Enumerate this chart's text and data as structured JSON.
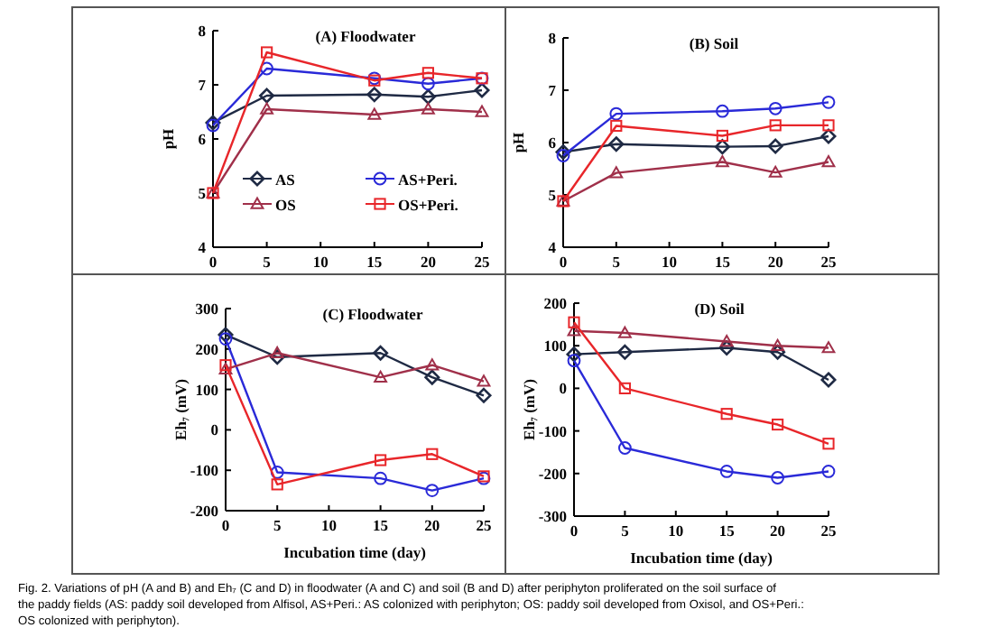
{
  "chart_data": [
    {
      "type": "line",
      "title": "(A)  Floodwater",
      "ylabel": "pH",
      "x": [
        0,
        5,
        15,
        20,
        25
      ],
      "xlim": [
        0,
        25
      ],
      "xticks": [
        0,
        5,
        10,
        15,
        20,
        25
      ],
      "ylim": [
        4,
        8
      ],
      "yticks": [
        4,
        5,
        6,
        7,
        8
      ],
      "legend": "bottom",
      "series": [
        {
          "name": "AS",
          "color": "#1f2a44",
          "marker": "diamond",
          "values": [
            6.3,
            6.8,
            6.82,
            6.78,
            6.9
          ]
        },
        {
          "name": "AS+Peri.",
          "color": "#2a2ad8",
          "marker": "circle",
          "values": [
            6.25,
            7.3,
            7.12,
            7.02,
            7.12
          ]
        },
        {
          "name": "OS",
          "color": "#a0304a",
          "marker": "triangle",
          "values": [
            5.0,
            6.55,
            6.45,
            6.55,
            6.5
          ]
        },
        {
          "name": "OS+Peri.",
          "color": "#e8262a",
          "marker": "square",
          "values": [
            5.0,
            7.6,
            7.08,
            7.22,
            7.12
          ]
        }
      ]
    },
    {
      "type": "line",
      "title": "(B)  Soil",
      "ylabel": "pH",
      "x": [
        0,
        5,
        15,
        20,
        25
      ],
      "xlim": [
        0,
        25
      ],
      "xticks": [
        0,
        5,
        10,
        15,
        20,
        25
      ],
      "ylim": [
        4,
        8
      ],
      "yticks": [
        4,
        5,
        6,
        7,
        8
      ],
      "series": [
        {
          "color": "#1f2a44",
          "marker": "diamond",
          "values": [
            5.82,
            5.97,
            5.92,
            5.93,
            6.12
          ]
        },
        {
          "color": "#2a2ad8",
          "marker": "circle",
          "values": [
            5.75,
            6.55,
            6.6,
            6.65,
            6.77
          ]
        },
        {
          "color": "#a0304a",
          "marker": "triangle",
          "values": [
            4.88,
            5.42,
            5.63,
            5.43,
            5.63
          ]
        },
        {
          "color": "#e8262a",
          "marker": "square",
          "values": [
            4.88,
            6.32,
            6.13,
            6.33,
            6.33
          ]
        }
      ]
    },
    {
      "type": "line",
      "title": "(C)  Floodwater",
      "ylabel": "Eh₇ (mV)",
      "xlabel": "Incubation time (day)",
      "x": [
        0,
        5,
        15,
        20,
        25
      ],
      "xlim": [
        0,
        25
      ],
      "xticks": [
        0,
        5,
        10,
        15,
        20,
        25
      ],
      "ylim": [
        -200,
        300
      ],
      "yticks": [
        -200,
        -100,
        0,
        100,
        200,
        300
      ],
      "series": [
        {
          "color": "#1f2a44",
          "marker": "diamond",
          "values": [
            235,
            180,
            190,
            130,
            85
          ]
        },
        {
          "color": "#2a2ad8",
          "marker": "circle",
          "values": [
            225,
            -105,
            -120,
            -150,
            -120
          ]
        },
        {
          "color": "#a0304a",
          "marker": "triangle",
          "values": [
            150,
            190,
            130,
            160,
            120
          ]
        },
        {
          "color": "#e8262a",
          "marker": "square",
          "values": [
            160,
            -135,
            -75,
            -60,
            -115
          ]
        }
      ]
    },
    {
      "type": "line",
      "title": "(D)  Soil",
      "ylabel": "Eh₇ (mV)",
      "xlabel": "Incubation time (day)",
      "x": [
        0,
        5,
        15,
        20,
        25
      ],
      "xlim": [
        0,
        25
      ],
      "xticks": [
        0,
        5,
        10,
        15,
        20,
        25
      ],
      "ylim": [
        -300,
        200
      ],
      "yticks": [
        -300,
        -200,
        -100,
        0,
        100,
        200
      ],
      "annotations": [
        "Fig. 2. Variations of pH (A and B) and Eh₇ (C and D) in floodwater (A and C) and soil (B and D) after periphyton proliferated on the soil surface of the paddy fields (AS: paddy soil developed from Alfisol, AS+Peri.: AS colonized with periphyton; OS: paddy soil developed from Oxisol, and OS+Peri.: OS colonized with periphyton)."
      ],
      "series": [
        {
          "color": "#1f2a44",
          "marker": "diamond",
          "values": [
            80,
            85,
            95,
            85,
            20
          ]
        },
        {
          "color": "#2a2ad8",
          "marker": "circle",
          "values": [
            65,
            -140,
            -195,
            -210,
            -195
          ]
        },
        {
          "color": "#a0304a",
          "marker": "triangle",
          "values": [
            135,
            130,
            110,
            100,
            95
          ]
        },
        {
          "color": "#e8262a",
          "marker": "square",
          "values": [
            155,
            0,
            -60,
            -85,
            -130
          ]
        }
      ]
    }
  ]
}
